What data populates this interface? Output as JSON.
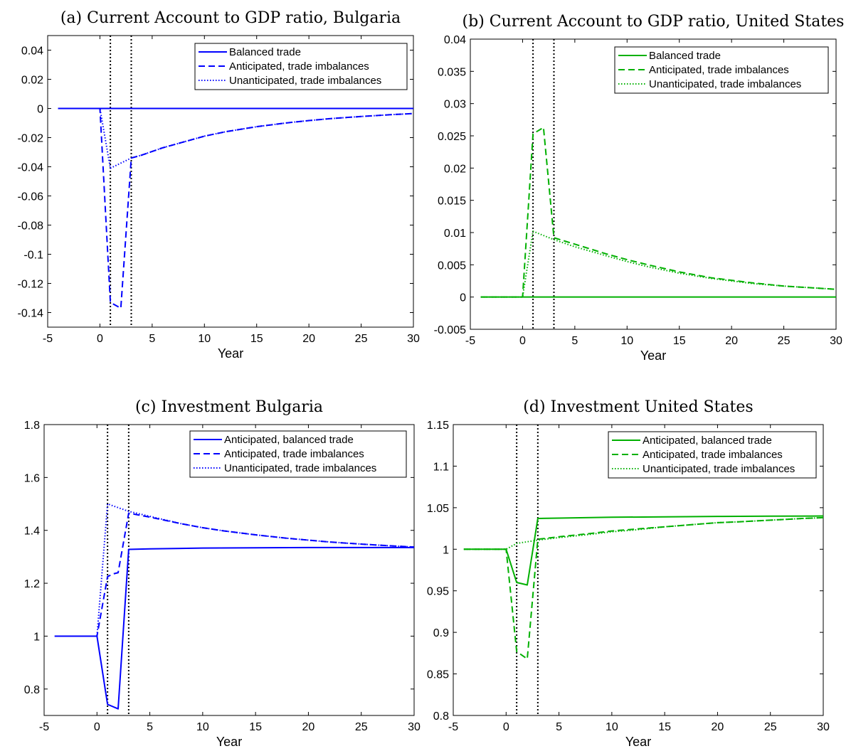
{
  "chart_data": [
    {
      "panel": "a",
      "type": "line",
      "title": "(a) Current Account to GDP ratio, Bulgaria",
      "xlabel": "Year",
      "ylabel": "",
      "xlim": [
        -5,
        30
      ],
      "ylim": [
        -0.15,
        0.05
      ],
      "xticks": [
        -5,
        0,
        5,
        10,
        15,
        20,
        25,
        30
      ],
      "xtick_labels": [
        "-5",
        "0",
        "5",
        "10",
        "15",
        "20",
        "25",
        "30"
      ],
      "yticks": [
        -0.14,
        -0.12,
        -0.1,
        -0.08,
        -0.06,
        -0.04,
        -0.02,
        0,
        0.02,
        0.04
      ],
      "ytick_labels": [
        "-0.14",
        "-0.12",
        "-0.1",
        "-0.08",
        "-0.06",
        "-0.04",
        "-0.02",
        "0",
        "0.02",
        "0.04"
      ],
      "vlines": [
        1,
        3
      ],
      "color": "#0000ff",
      "legend_position": "top-right",
      "series": [
        {
          "name": "Balanced trade",
          "style": "solid",
          "x": [
            -4,
            30
          ],
          "y": [
            0,
            0
          ]
        },
        {
          "name": "Anticipated, trade imbalances",
          "style": "dashed",
          "x": [
            -4,
            0,
            1,
            2,
            3,
            4,
            6,
            8,
            10,
            12,
            15,
            18,
            20,
            22,
            25,
            28,
            30
          ],
          "y": [
            0,
            0,
            -0.133,
            -0.137,
            -0.034,
            -0.032,
            -0.027,
            -0.023,
            -0.019,
            -0.016,
            -0.0125,
            -0.0098,
            -0.0083,
            -0.007,
            -0.0055,
            -0.0042,
            -0.0035
          ]
        },
        {
          "name": "Unanticipated, trade imbalances",
          "style": "dotted",
          "x": [
            -4,
            0,
            1,
            3,
            4,
            6,
            8,
            10,
            12,
            15,
            18,
            20,
            22,
            25,
            28,
            30
          ],
          "y": [
            0,
            0,
            -0.041,
            -0.034,
            -0.032,
            -0.027,
            -0.023,
            -0.019,
            -0.016,
            -0.0125,
            -0.0098,
            -0.0083,
            -0.007,
            -0.0055,
            -0.0042,
            -0.0035
          ]
        }
      ]
    },
    {
      "panel": "b",
      "type": "line",
      "title": "(b) Current Account to GDP ratio, United States",
      "xlabel": "Year",
      "ylabel": "",
      "xlim": [
        -5,
        30
      ],
      "ylim": [
        -0.005,
        0.04
      ],
      "xticks": [
        -5,
        0,
        5,
        10,
        15,
        20,
        25,
        30
      ],
      "xtick_labels": [
        "-5",
        "0",
        "5",
        "10",
        "15",
        "20",
        "25",
        "30"
      ],
      "yticks": [
        -0.005,
        0,
        0.005,
        0.01,
        0.015,
        0.02,
        0.025,
        0.03,
        0.035,
        0.04
      ],
      "ytick_labels": [
        "-0.005",
        "0",
        "0.005",
        "0.01",
        "0.015",
        "0.02",
        "0.025",
        "0.03",
        "0.035",
        "0.04"
      ],
      "vlines": [
        1,
        3
      ],
      "color": "#00b000",
      "legend_position": "top-right",
      "series": [
        {
          "name": "Balanced trade",
          "style": "solid",
          "x": [
            -4,
            30
          ],
          "y": [
            0,
            0
          ]
        },
        {
          "name": "Anticipated, trade imbalances",
          "style": "dashed",
          "x": [
            -4,
            0,
            1,
            2,
            3,
            5,
            8,
            10,
            12,
            15,
            18,
            20,
            22,
            25,
            28,
            30
          ],
          "y": [
            0,
            0,
            0.0253,
            0.0263,
            0.0092,
            0.0082,
            0.0067,
            0.0058,
            0.005,
            0.0039,
            0.003,
            0.0026,
            0.0022,
            0.0017,
            0.0014,
            0.0012
          ]
        },
        {
          "name": "Unanticipated, trade imbalances",
          "style": "dotted",
          "x": [
            -4,
            0,
            1,
            3,
            5,
            8,
            10,
            12,
            15,
            18,
            20,
            22,
            25,
            28,
            30
          ],
          "y": [
            0,
            0,
            0.0102,
            0.0089,
            0.0078,
            0.0064,
            0.0055,
            0.0047,
            0.0037,
            0.0029,
            0.0025,
            0.0021,
            0.0017,
            0.0014,
            0.0012
          ]
        }
      ]
    },
    {
      "panel": "c",
      "type": "line",
      "title": "(c) Investment Bulgaria",
      "xlabel": "Year",
      "ylabel": "",
      "xlim": [
        -5,
        30
      ],
      "ylim": [
        0.7,
        1.8
      ],
      "xticks": [
        -5,
        0,
        5,
        10,
        15,
        20,
        25,
        30
      ],
      "xtick_labels": [
        "-5",
        "0",
        "5",
        "10",
        "15",
        "20",
        "25",
        "30"
      ],
      "yticks": [
        0.8,
        1,
        1.2,
        1.4,
        1.6,
        1.8
      ],
      "ytick_labels": [
        "0.8",
        "1",
        "1.2",
        "1.4",
        "1.6",
        "1.8"
      ],
      "vlines": [
        1,
        3
      ],
      "color": "#0000ff",
      "legend_position": "top-right",
      "series": [
        {
          "name": "Anticipated, balanced trade",
          "style": "solid",
          "x": [
            -4,
            0,
            1,
            2,
            3,
            5,
            10,
            15,
            20,
            25,
            30
          ],
          "y": [
            1,
            1,
            0.742,
            0.725,
            1.328,
            1.33,
            1.333,
            1.334,
            1.335,
            1.335,
            1.335
          ]
        },
        {
          "name": "Anticipated, trade imbalances",
          "style": "dashed",
          "x": [
            -4,
            0,
            1,
            1.5,
            2,
            3,
            5,
            8,
            10,
            12,
            15,
            18,
            20,
            22,
            25,
            28,
            30
          ],
          "y": [
            1,
            1,
            1.225,
            1.235,
            1.24,
            1.465,
            1.45,
            1.425,
            1.41,
            1.398,
            1.383,
            1.37,
            1.363,
            1.356,
            1.348,
            1.341,
            1.337
          ]
        },
        {
          "name": "Unanticipated, trade imbalances",
          "style": "dotted",
          "x": [
            -4,
            0,
            1,
            3,
            5,
            8,
            10,
            12,
            15,
            18,
            20,
            22,
            25,
            28,
            30
          ],
          "y": [
            1,
            1,
            1.5,
            1.472,
            1.453,
            1.425,
            1.41,
            1.398,
            1.383,
            1.37,
            1.363,
            1.356,
            1.348,
            1.341,
            1.337
          ]
        }
      ]
    },
    {
      "panel": "d",
      "type": "line",
      "title": "(d) Investment United States",
      "xlabel": "Year",
      "ylabel": "",
      "xlim": [
        -5,
        30
      ],
      "ylim": [
        0.8,
        1.15
      ],
      "xticks": [
        -5,
        0,
        5,
        10,
        15,
        20,
        25,
        30
      ],
      "xtick_labels": [
        "-5",
        "0",
        "5",
        "10",
        "15",
        "20",
        "25",
        "30"
      ],
      "yticks": [
        0.8,
        0.85,
        0.9,
        0.95,
        1,
        1.05,
        1.1,
        1.15
      ],
      "ytick_labels": [
        "0.8",
        "0.85",
        "0.9",
        "0.95",
        "1",
        "1.05",
        "1.1",
        "1.15"
      ],
      "vlines": [
        1,
        3
      ],
      "color": "#00b000",
      "legend_position": "top-right",
      "series": [
        {
          "name": "Anticipated, balanced trade",
          "style": "solid",
          "x": [
            -4,
            0,
            1,
            2,
            3,
            5,
            10,
            15,
            20,
            25,
            30
          ],
          "y": [
            1,
            1,
            0.96,
            0.957,
            1.037,
            1.0375,
            1.0385,
            1.039,
            1.0395,
            1.0398,
            1.04
          ]
        },
        {
          "name": "Anticipated, trade imbalances",
          "style": "dashed",
          "x": [
            -4,
            0,
            1,
            2,
            3,
            5,
            8,
            10,
            12,
            15,
            18,
            20,
            22,
            25,
            28,
            30
          ],
          "y": [
            1,
            1,
            0.877,
            0.868,
            1.012,
            1.015,
            1.019,
            1.022,
            1.024,
            1.027,
            1.03,
            1.032,
            1.033,
            1.035,
            1.037,
            1.038
          ]
        },
        {
          "name": "Unanticipated, trade imbalances",
          "style": "dotted",
          "x": [
            -4,
            0,
            1,
            3,
            5,
            8,
            10,
            12,
            15,
            18,
            20,
            22,
            25,
            28,
            30
          ],
          "y": [
            1,
            1,
            1.007,
            1.011,
            1.014,
            1.018,
            1.021,
            1.023,
            1.027,
            1.03,
            1.032,
            1.033,
            1.035,
            1.037,
            1.038
          ]
        }
      ]
    }
  ]
}
